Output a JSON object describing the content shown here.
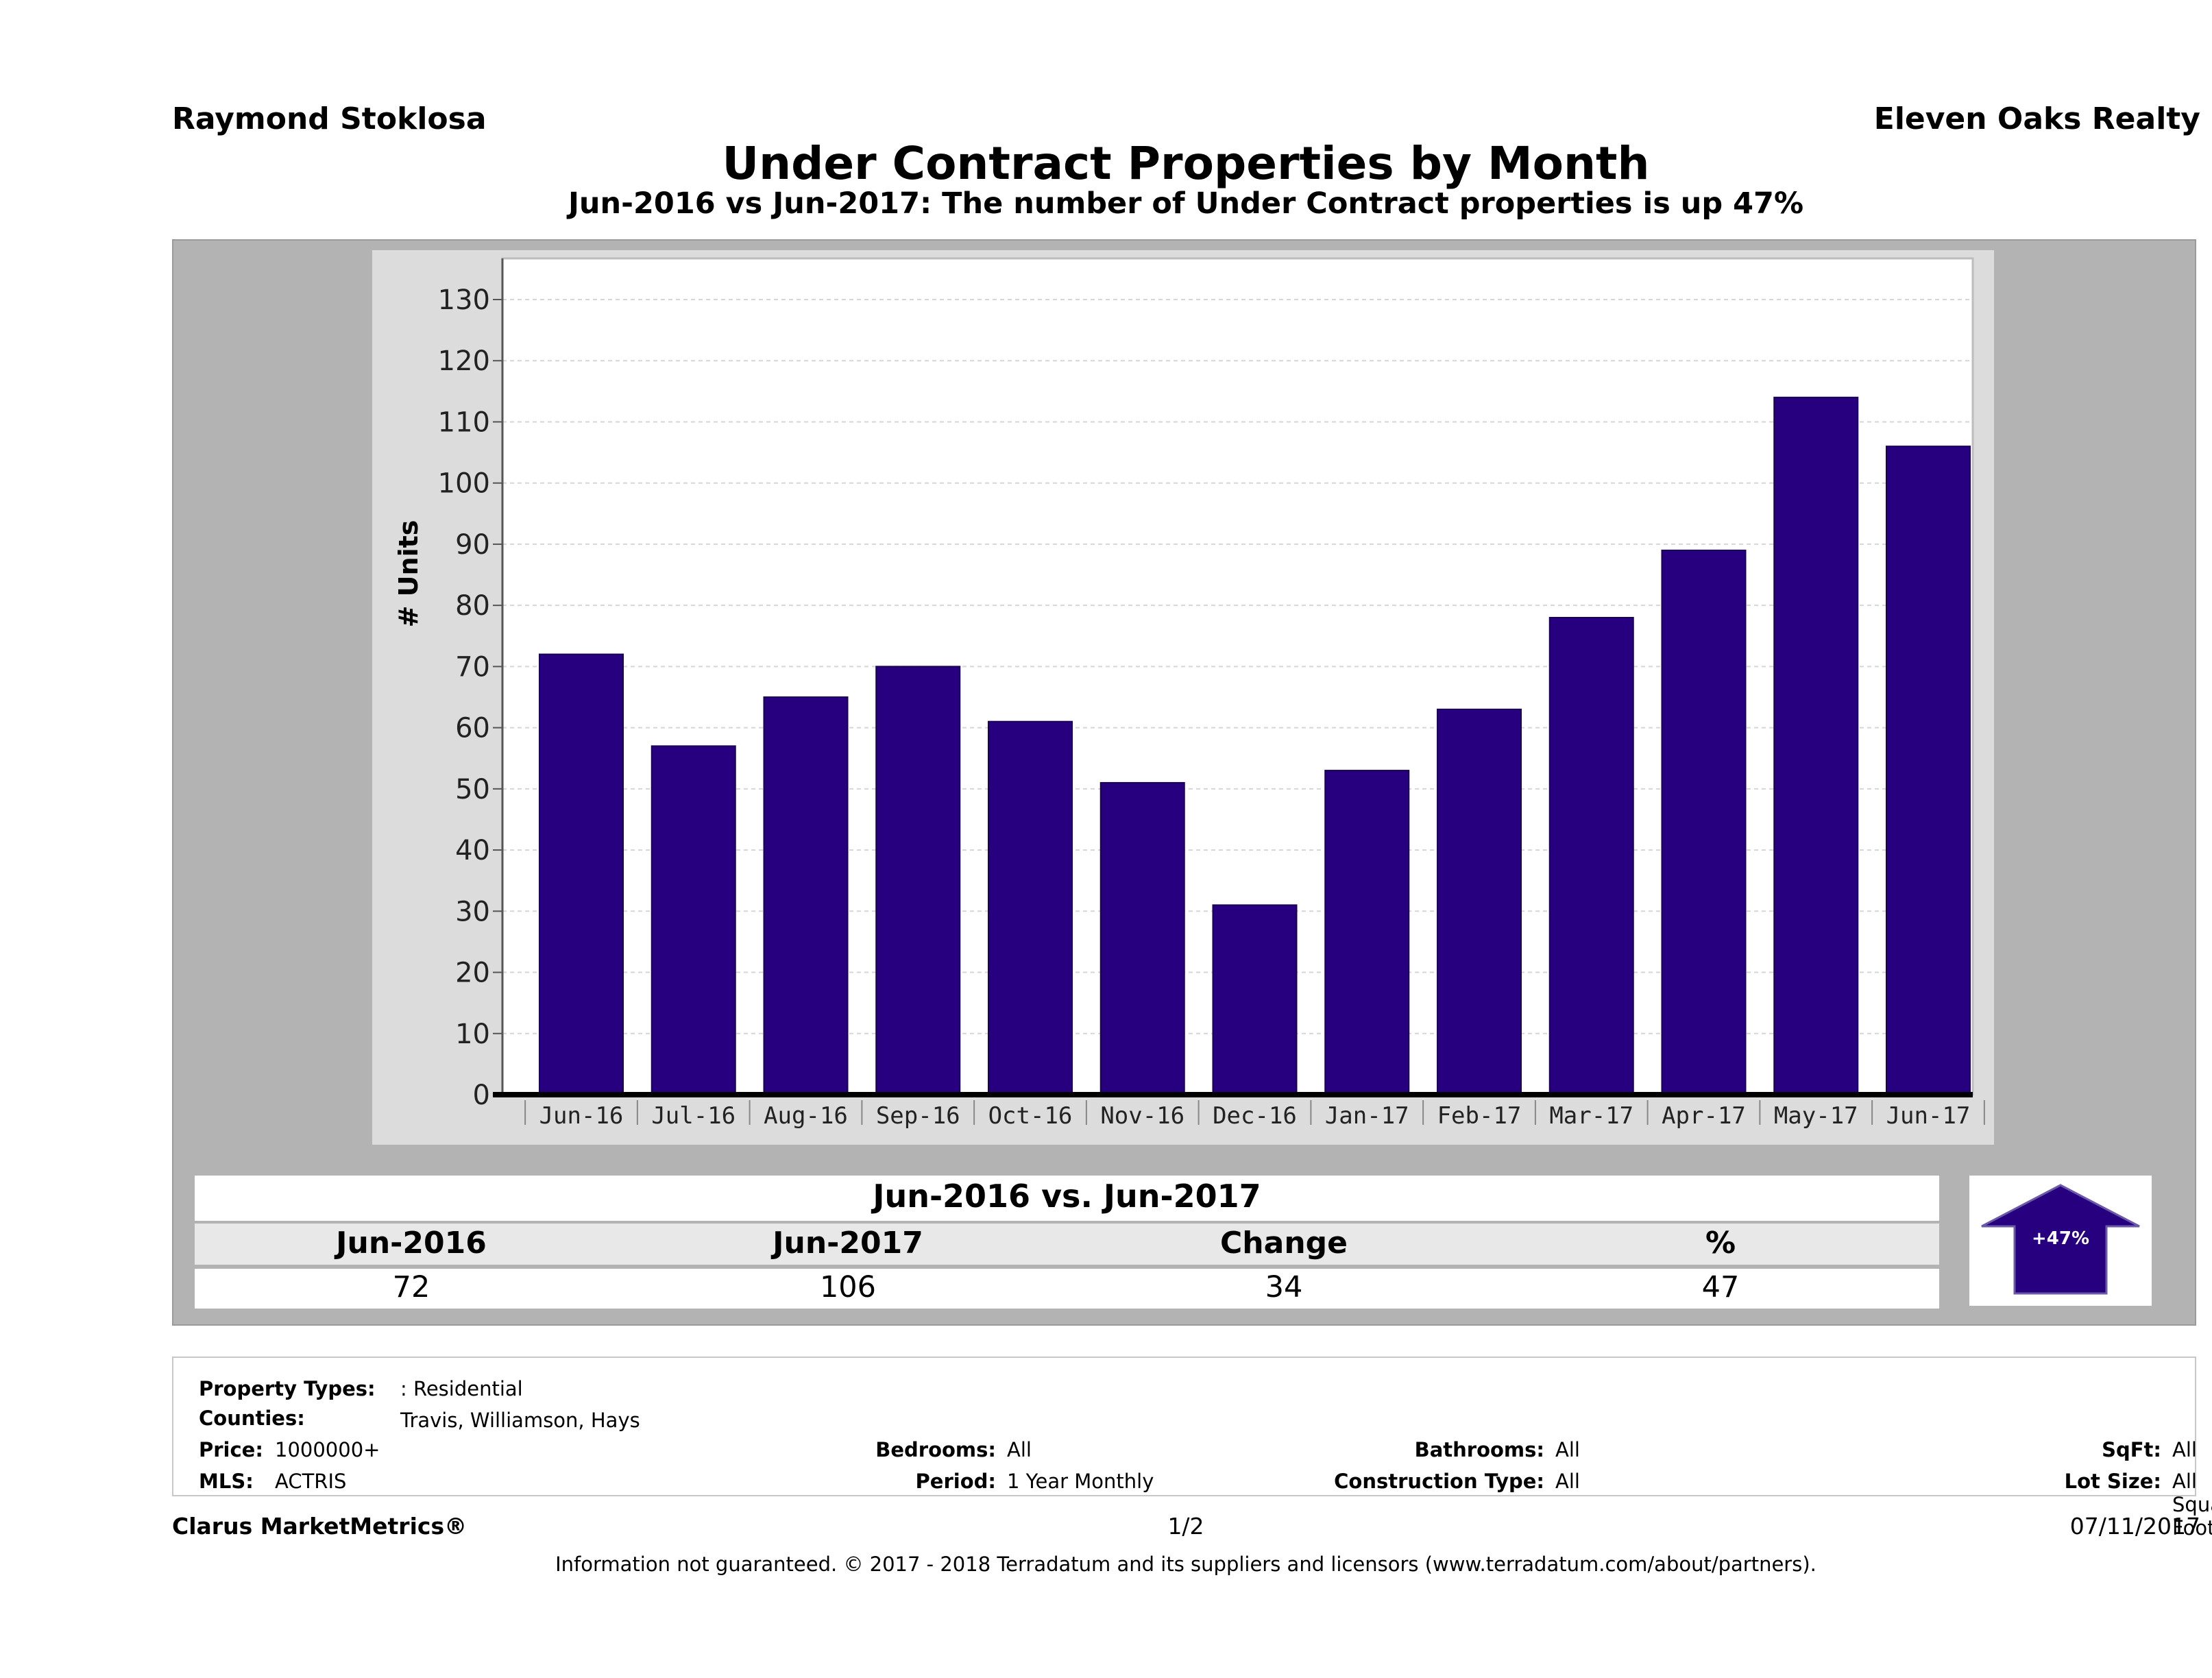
{
  "header": {
    "agent": "Raymond Stoklosa",
    "brokerage": "Eleven Oaks Realty",
    "title": "Under Contract Properties by Month",
    "subtitle": "Jun-2016 vs Jun-2017: The number of Under Contract  properties is up 47%"
  },
  "chart_data": {
    "type": "bar",
    "categories": [
      "Jun-16",
      "Jul-16",
      "Aug-16",
      "Sep-16",
      "Oct-16",
      "Nov-16",
      "Dec-16",
      "Jan-17",
      "Feb-17",
      "Mar-17",
      "Apr-17",
      "May-17",
      "Jun-17"
    ],
    "values": [
      72,
      57,
      65,
      70,
      61,
      51,
      31,
      53,
      63,
      78,
      89,
      114,
      106
    ],
    "ylabel": "# Units",
    "ylim": [
      0,
      130
    ],
    "yticks": [
      0,
      10,
      20,
      30,
      40,
      50,
      60,
      70,
      80,
      90,
      100,
      110,
      120,
      130
    ],
    "grid": true,
    "bar_color": "#26007f"
  },
  "summary": {
    "title": "Jun-2016 vs. Jun-2017",
    "headers": [
      "Jun-2016",
      "Jun-2017",
      "Change",
      "%"
    ],
    "values": [
      "72",
      "106",
      "34",
      "47"
    ],
    "badge": "+47%",
    "badge_color": "#26007f"
  },
  "criteria": {
    "property_types_label": "Property Types:",
    "property_types_value": ": Residential",
    "counties_label": "Counties:",
    "counties_value": "Travis, Williamson, Hays",
    "price_label": "Price:",
    "price_value": "1000000+",
    "mls_label": "MLS:",
    "mls_value": "ACTRIS",
    "bedrooms_label": "Bedrooms:",
    "bedrooms_value": "All",
    "period_label": "Period:",
    "period_value": "1 Year Monthly",
    "bathrooms_label": "Bathrooms:",
    "bathrooms_value": "All",
    "construction_label": "Construction Type:",
    "construction_value": "All",
    "sqft_label": "SqFt:",
    "sqft_value": "All",
    "lot_label": "Lot Size:",
    "lot_value": "All Square Footage"
  },
  "footer": {
    "brand": "Clarus MarketMetrics®",
    "page": "1/2",
    "date": "07/11/2017",
    "disclaimer": "Information not guaranteed. © 2017 - 2018 Terradatum and its suppliers and licensors (www.terradatum.com/about/partners)."
  }
}
